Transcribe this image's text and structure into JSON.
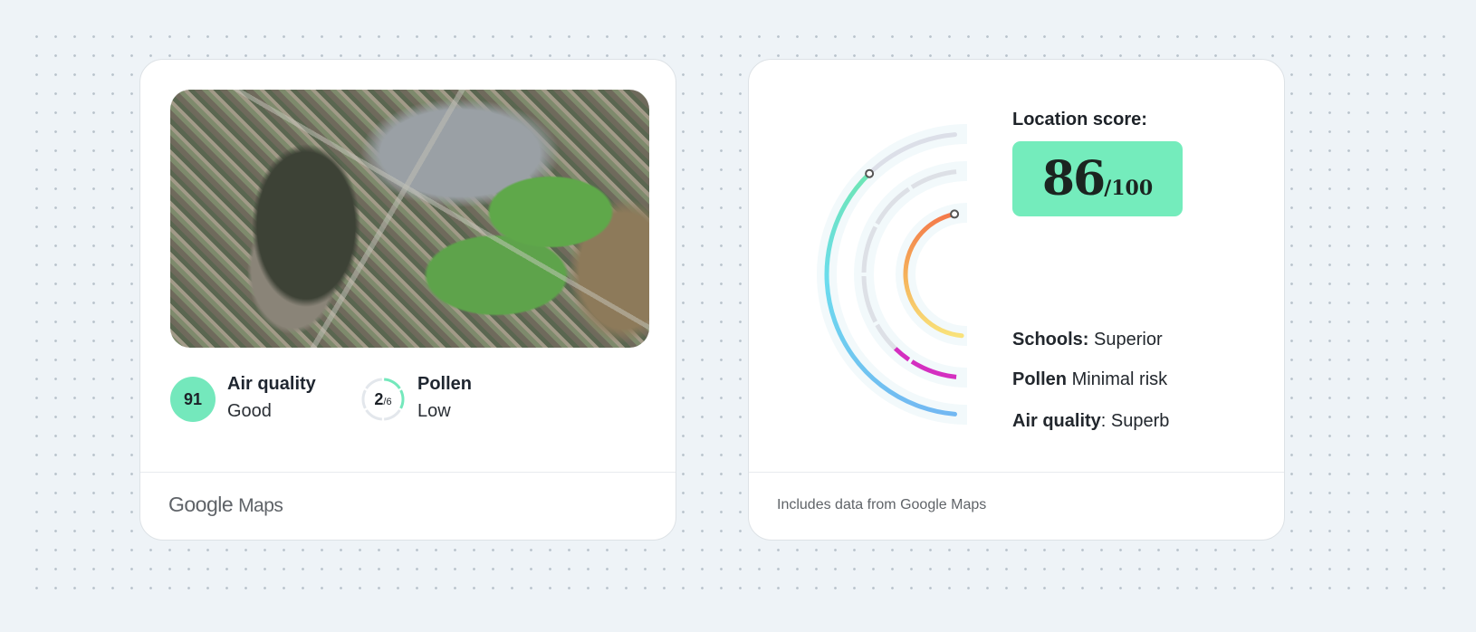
{
  "left_card": {
    "map_alt": "Satellite map",
    "air_quality": {
      "value": "91",
      "title": "Air quality",
      "status": "Good",
      "badge_color": "#74e8bc"
    },
    "pollen": {
      "value": "2",
      "max": "/6",
      "title": "Pollen",
      "status": "Low",
      "level": 2,
      "level_max": 6,
      "ring_color": "#74e8bc"
    },
    "footer_logo": {
      "google": "Google",
      "maps": "Maps"
    }
  },
  "right_card": {
    "location_score_label": "Location score:",
    "score": "86",
    "score_max": "/100",
    "score_color": "#74ecbc",
    "legend": [
      {
        "name": "Schools:",
        "value": "Superior"
      },
      {
        "name": "Pollen",
        "value": "Minimal risk"
      },
      {
        "name": "Air quality",
        "sep": ":",
        "value": "Superb"
      }
    ],
    "arcs": {
      "schools": {
        "fill": 0.96,
        "colors": [
          "#f4794a",
          "#f5b15a",
          "#f9e27a"
        ]
      },
      "pollen": {
        "fill": 0.23,
        "color": "#d42fc0",
        "segments": 6
      },
      "air_quality": {
        "fill": 0.77,
        "colors": [
          "#6de6b4",
          "#6cdcee",
          "#72b8f2"
        ]
      },
      "track_color": "#dde0e6"
    },
    "footer": "Includes data from Google Maps"
  }
}
